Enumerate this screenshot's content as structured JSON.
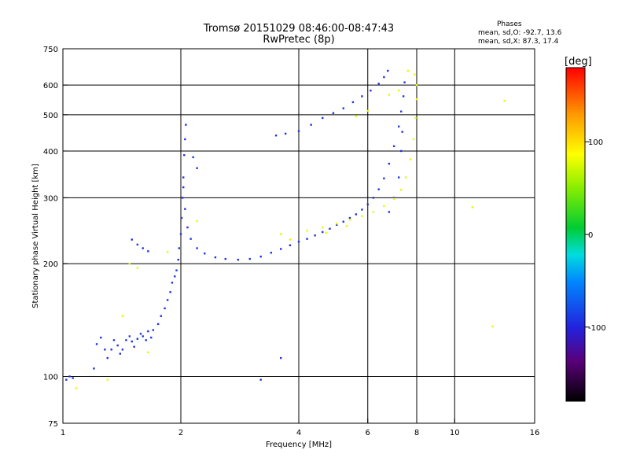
{
  "chart_data": {
    "type": "scatter",
    "title": "Tromsø 20151029 08:46:00-08:47:43",
    "subtitle": "RwPretec (8p)",
    "xlabel": "Frequency [MHz]",
    "ylabel": "Stationary phase Virtual Height [km]",
    "x_scale": "log",
    "y_scale": "log",
    "xlim": [
      1,
      16
    ],
    "ylim": [
      75,
      750
    ],
    "x_ticks": [
      1,
      2,
      4,
      6,
      8,
      10,
      16
    ],
    "x_tick_labels": [
      "1",
      "2",
      "4",
      "6",
      "8",
      "10",
      "16"
    ],
    "y_ticks": [
      75,
      100,
      200,
      300,
      400,
      500,
      600,
      750
    ],
    "y_tick_labels": [
      "75",
      "100",
      "200",
      "300",
      "400",
      "500",
      "600",
      "750"
    ],
    "x_gridlines": [
      2,
      4,
      6,
      8,
      10
    ],
    "y_gridlines": [
      100,
      200,
      300,
      400,
      500,
      600
    ],
    "legend": {
      "heading": "Phases",
      "lines": [
        "mean, sd,O: -92.7, 13.6",
        "mean, sd,X:  87.3, 17.4"
      ],
      "placement": "top-right"
    },
    "colorbar": {
      "label": "[deg]",
      "ticks": [
        100,
        0,
        -100
      ],
      "tick_labels": [
        "100",
        "0",
        "-100"
      ],
      "range": [
        -180,
        180
      ]
    },
    "series": [
      {
        "mode": "O",
        "phase_mean": -92.7,
        "phase_sd": 13.6,
        "points": [
          [
            1.02,
            98
          ],
          [
            1.04,
            100
          ],
          [
            1.06,
            99
          ],
          [
            1.2,
            105
          ],
          [
            1.22,
            122
          ],
          [
            1.25,
            127
          ],
          [
            1.28,
            118
          ],
          [
            1.3,
            112
          ],
          [
            1.33,
            118
          ],
          [
            1.35,
            125
          ],
          [
            1.38,
            121
          ],
          [
            1.4,
            115
          ],
          [
            1.42,
            118
          ],
          [
            1.45,
            125
          ],
          [
            1.48,
            128
          ],
          [
            1.5,
            124
          ],
          [
            1.52,
            120
          ],
          [
            1.55,
            126
          ],
          [
            1.58,
            130
          ],
          [
            1.6,
            128
          ],
          [
            1.63,
            125
          ],
          [
            1.65,
            132
          ],
          [
            1.68,
            127
          ],
          [
            1.7,
            133
          ],
          [
            1.75,
            138
          ],
          [
            1.78,
            145
          ],
          [
            1.82,
            152
          ],
          [
            1.85,
            160
          ],
          [
            1.88,
            168
          ],
          [
            1.9,
            178
          ],
          [
            1.93,
            185
          ],
          [
            1.95,
            192
          ],
          [
            1.97,
            205
          ],
          [
            1.98,
            220
          ],
          [
            2.0,
            240
          ],
          [
            2.01,
            265
          ],
          [
            2.02,
            300
          ],
          [
            2.03,
            340
          ],
          [
            2.04,
            390
          ],
          [
            2.05,
            430
          ],
          [
            2.06,
            470
          ],
          [
            2.03,
            320
          ],
          [
            2.05,
            280
          ],
          [
            2.08,
            250
          ],
          [
            2.12,
            233
          ],
          [
            2.2,
            220
          ],
          [
            2.3,
            213
          ],
          [
            2.45,
            208
          ],
          [
            2.6,
            206
          ],
          [
            2.8,
            205
          ],
          [
            3.0,
            206
          ],
          [
            3.2,
            209
          ],
          [
            3.4,
            214
          ],
          [
            3.6,
            219
          ],
          [
            3.8,
            224
          ],
          [
            4.0,
            229
          ],
          [
            4.2,
            233
          ],
          [
            4.4,
            238
          ],
          [
            4.6,
            243
          ],
          [
            4.8,
            248
          ],
          [
            5.0,
            254
          ],
          [
            5.2,
            259
          ],
          [
            5.4,
            265
          ],
          [
            5.6,
            271
          ],
          [
            5.8,
            279
          ],
          [
            6.0,
            288
          ],
          [
            6.2,
            300
          ],
          [
            6.4,
            316
          ],
          [
            6.6,
            338
          ],
          [
            6.8,
            370
          ],
          [
            7.0,
            412
          ],
          [
            7.2,
            465
          ],
          [
            7.3,
            510
          ],
          [
            7.4,
            560
          ],
          [
            7.45,
            610
          ],
          [
            1.5,
            232
          ],
          [
            1.55,
            225
          ],
          [
            1.6,
            220
          ],
          [
            1.65,
            216
          ],
          [
            2.15,
            385
          ],
          [
            2.2,
            360
          ],
          [
            3.5,
            440
          ],
          [
            3.7,
            445
          ],
          [
            4.0,
            452
          ],
          [
            4.3,
            470
          ],
          [
            4.6,
            490
          ],
          [
            4.9,
            505
          ],
          [
            5.2,
            520
          ],
          [
            5.5,
            540
          ],
          [
            5.8,
            560
          ],
          [
            6.1,
            580
          ],
          [
            6.4,
            605
          ],
          [
            6.6,
            630
          ],
          [
            6.75,
            655
          ],
          [
            3.6,
            112
          ],
          [
            3.2,
            98
          ],
          [
            6.8,
            275
          ],
          [
            7.0,
            300
          ],
          [
            7.2,
            340
          ],
          [
            7.3,
            400
          ],
          [
            7.35,
            450
          ]
        ]
      },
      {
        "mode": "X",
        "phase_mean": 87.3,
        "phase_sd": 17.4,
        "points": [
          [
            1.3,
            98
          ],
          [
            1.42,
            145
          ],
          [
            1.48,
            200
          ],
          [
            1.55,
            195
          ],
          [
            1.85,
            215
          ],
          [
            2.2,
            260
          ],
          [
            3.6,
            240
          ],
          [
            3.8,
            232
          ],
          [
            4.2,
            245
          ],
          [
            4.6,
            250
          ],
          [
            5.0,
            256
          ],
          [
            5.4,
            262
          ],
          [
            5.8,
            268
          ],
          [
            6.2,
            275
          ],
          [
            6.6,
            285
          ],
          [
            7.0,
            298
          ],
          [
            7.3,
            315
          ],
          [
            7.5,
            340
          ],
          [
            7.7,
            380
          ],
          [
            7.85,
            430
          ],
          [
            7.95,
            490
          ],
          [
            8.0,
            550
          ],
          [
            8.0,
            600
          ],
          [
            7.9,
            640
          ],
          [
            7.6,
            655
          ],
          [
            7.2,
            580
          ],
          [
            6.8,
            565
          ],
          [
            5.6,
            495
          ],
          [
            6.0,
            512
          ],
          [
            4.7,
            242
          ],
          [
            5.3,
            252
          ],
          [
            11.1,
            283
          ],
          [
            12.5,
            136
          ],
          [
            13.4,
            545
          ],
          [
            1.08,
            93
          ],
          [
            1.65,
            116
          ]
        ]
      }
    ]
  }
}
